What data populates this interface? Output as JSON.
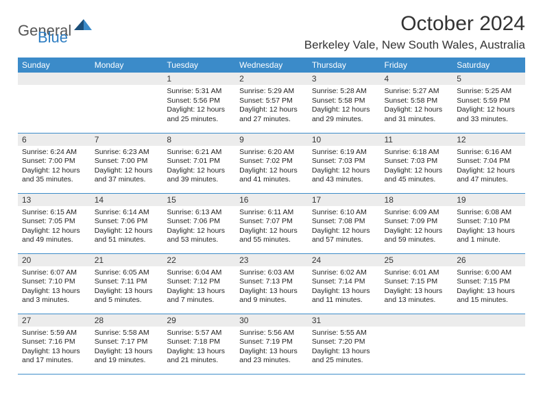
{
  "logo": {
    "text_general": "General",
    "text_blue": "Blue",
    "shape_color_dark": "#1b4f7a",
    "shape_color_light": "#3b8bc9"
  },
  "title": "October 2024",
  "location": "Berkeley Vale, New South Wales, Australia",
  "header_bg": "#3b8bc9",
  "header_text_color": "#ffffff",
  "daynum_bg": "#ececec",
  "border_color": "#3b8bc9",
  "day_headers": [
    "Sunday",
    "Monday",
    "Tuesday",
    "Wednesday",
    "Thursday",
    "Friday",
    "Saturday"
  ],
  "weeks": [
    [
      null,
      null,
      {
        "n": "1",
        "sr": "5:31 AM",
        "ss": "5:56 PM",
        "dl": "12 hours and 25 minutes."
      },
      {
        "n": "2",
        "sr": "5:29 AM",
        "ss": "5:57 PM",
        "dl": "12 hours and 27 minutes."
      },
      {
        "n": "3",
        "sr": "5:28 AM",
        "ss": "5:58 PM",
        "dl": "12 hours and 29 minutes."
      },
      {
        "n": "4",
        "sr": "5:27 AM",
        "ss": "5:58 PM",
        "dl": "12 hours and 31 minutes."
      },
      {
        "n": "5",
        "sr": "5:25 AM",
        "ss": "5:59 PM",
        "dl": "12 hours and 33 minutes."
      }
    ],
    [
      {
        "n": "6",
        "sr": "6:24 AM",
        "ss": "7:00 PM",
        "dl": "12 hours and 35 minutes."
      },
      {
        "n": "7",
        "sr": "6:23 AM",
        "ss": "7:00 PM",
        "dl": "12 hours and 37 minutes."
      },
      {
        "n": "8",
        "sr": "6:21 AM",
        "ss": "7:01 PM",
        "dl": "12 hours and 39 minutes."
      },
      {
        "n": "9",
        "sr": "6:20 AM",
        "ss": "7:02 PM",
        "dl": "12 hours and 41 minutes."
      },
      {
        "n": "10",
        "sr": "6:19 AM",
        "ss": "7:03 PM",
        "dl": "12 hours and 43 minutes."
      },
      {
        "n": "11",
        "sr": "6:18 AM",
        "ss": "7:03 PM",
        "dl": "12 hours and 45 minutes."
      },
      {
        "n": "12",
        "sr": "6:16 AM",
        "ss": "7:04 PM",
        "dl": "12 hours and 47 minutes."
      }
    ],
    [
      {
        "n": "13",
        "sr": "6:15 AM",
        "ss": "7:05 PM",
        "dl": "12 hours and 49 minutes."
      },
      {
        "n": "14",
        "sr": "6:14 AM",
        "ss": "7:06 PM",
        "dl": "12 hours and 51 minutes."
      },
      {
        "n": "15",
        "sr": "6:13 AM",
        "ss": "7:06 PM",
        "dl": "12 hours and 53 minutes."
      },
      {
        "n": "16",
        "sr": "6:11 AM",
        "ss": "7:07 PM",
        "dl": "12 hours and 55 minutes."
      },
      {
        "n": "17",
        "sr": "6:10 AM",
        "ss": "7:08 PM",
        "dl": "12 hours and 57 minutes."
      },
      {
        "n": "18",
        "sr": "6:09 AM",
        "ss": "7:09 PM",
        "dl": "12 hours and 59 minutes."
      },
      {
        "n": "19",
        "sr": "6:08 AM",
        "ss": "7:10 PM",
        "dl": "13 hours and 1 minute."
      }
    ],
    [
      {
        "n": "20",
        "sr": "6:07 AM",
        "ss": "7:10 PM",
        "dl": "13 hours and 3 minutes."
      },
      {
        "n": "21",
        "sr": "6:05 AM",
        "ss": "7:11 PM",
        "dl": "13 hours and 5 minutes."
      },
      {
        "n": "22",
        "sr": "6:04 AM",
        "ss": "7:12 PM",
        "dl": "13 hours and 7 minutes."
      },
      {
        "n": "23",
        "sr": "6:03 AM",
        "ss": "7:13 PM",
        "dl": "13 hours and 9 minutes."
      },
      {
        "n": "24",
        "sr": "6:02 AM",
        "ss": "7:14 PM",
        "dl": "13 hours and 11 minutes."
      },
      {
        "n": "25",
        "sr": "6:01 AM",
        "ss": "7:15 PM",
        "dl": "13 hours and 13 minutes."
      },
      {
        "n": "26",
        "sr": "6:00 AM",
        "ss": "7:15 PM",
        "dl": "13 hours and 15 minutes."
      }
    ],
    [
      {
        "n": "27",
        "sr": "5:59 AM",
        "ss": "7:16 PM",
        "dl": "13 hours and 17 minutes."
      },
      {
        "n": "28",
        "sr": "5:58 AM",
        "ss": "7:17 PM",
        "dl": "13 hours and 19 minutes."
      },
      {
        "n": "29",
        "sr": "5:57 AM",
        "ss": "7:18 PM",
        "dl": "13 hours and 21 minutes."
      },
      {
        "n": "30",
        "sr": "5:56 AM",
        "ss": "7:19 PM",
        "dl": "13 hours and 23 minutes."
      },
      {
        "n": "31",
        "sr": "5:55 AM",
        "ss": "7:20 PM",
        "dl": "13 hours and 25 minutes."
      },
      null,
      null
    ]
  ],
  "labels": {
    "sunrise": "Sunrise:",
    "sunset": "Sunset:",
    "daylight": "Daylight:"
  }
}
